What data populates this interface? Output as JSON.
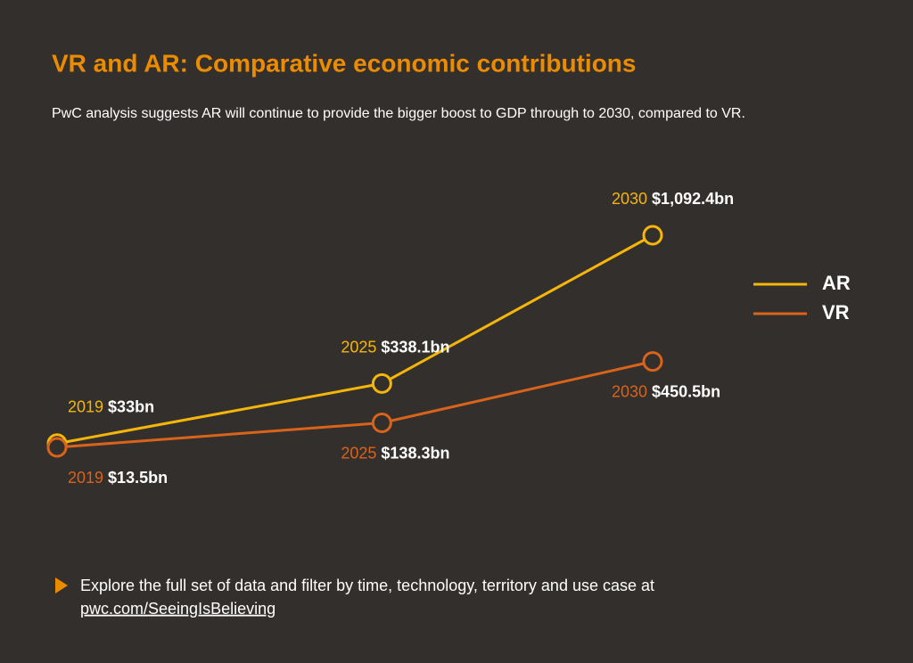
{
  "chart_data": {
    "type": "line",
    "title": "VR and AR: Comparative economic contributions",
    "subtitle": "PwC analysis suggests AR will continue to provide the bigger boost to GDP through to 2030, compared to VR.",
    "x": [
      2019,
      2025,
      2030
    ],
    "series": [
      {
        "name": "AR",
        "color": "#f5b50a",
        "values": [
          33,
          338.1,
          1092.4
        ],
        "value_labels": [
          "$33bn",
          "$338.1bn",
          "$1,092.4bn"
        ]
      },
      {
        "name": "VR",
        "color": "#d8631a",
        "values": [
          13.5,
          138.3,
          450.5
        ],
        "value_labels": [
          "$13.5bn",
          "$138.3bn",
          "$450.5bn"
        ]
      }
    ],
    "legend": "right"
  },
  "footer": {
    "text": "Explore the full set of data and filter by time, technology, territory and use case at",
    "link": "pwc.com/SeeingIsBelieving"
  }
}
